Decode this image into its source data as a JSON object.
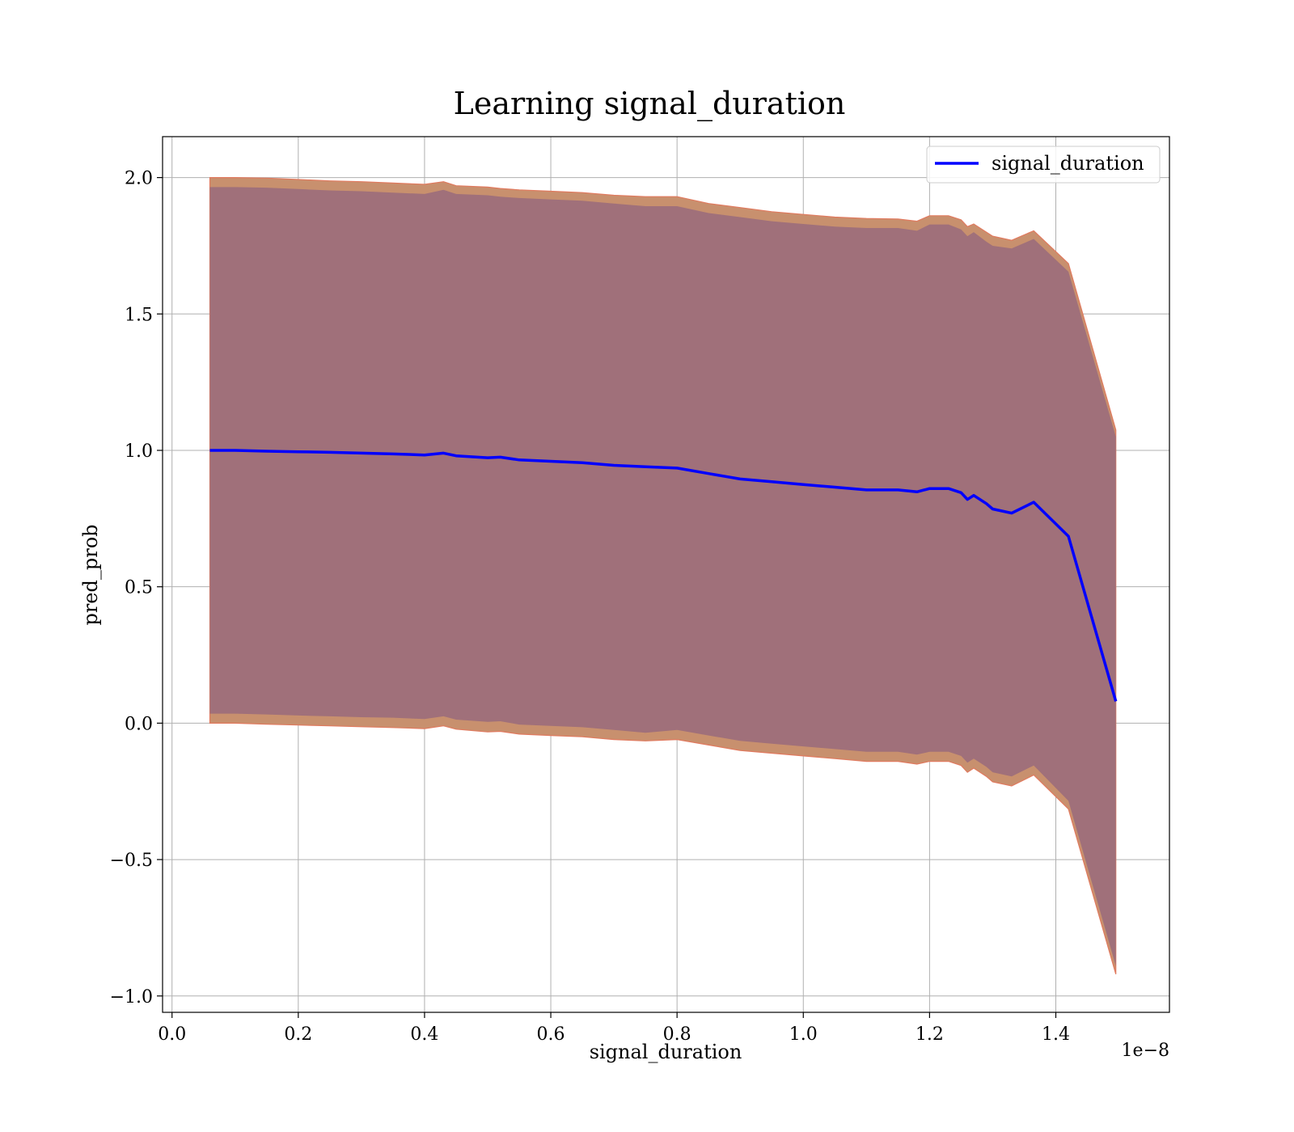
{
  "chart_data": {
    "type": "line",
    "title": "Learning signal_duration",
    "xlabel": "signal_duration",
    "ylabel": "pred_prob",
    "x_offset_text": "1e−8",
    "xlim": [
      -0.015,
      1.58
    ],
    "ylim": [
      -1.06,
      2.15
    ],
    "grid": true,
    "legend_position": "top-right",
    "x_ticks": [
      0.0,
      0.2,
      0.4,
      0.6,
      0.8,
      1.0,
      1.2,
      1.4
    ],
    "x_tick_labels": [
      "0.0",
      "0.2",
      "0.4",
      "0.6",
      "0.8",
      "1.0",
      "1.2",
      "1.4"
    ],
    "y_ticks": [
      -1.0,
      -0.5,
      0.0,
      0.5,
      1.0,
      1.5,
      2.0
    ],
    "y_tick_labels": [
      "−1.0",
      "−0.5",
      "0.0",
      "0.5",
      "1.0",
      "1.5",
      "2.0"
    ],
    "colors": {
      "line": "#0000ff",
      "band_outer": "#c8906e",
      "band_inner": "#a0707a",
      "band_edge": "#e07a5f",
      "grid": "#b0b0b0"
    },
    "series": [
      {
        "name": "signal_duration",
        "x": [
          0.06,
          0.1,
          0.15,
          0.2,
          0.25,
          0.3,
          0.35,
          0.4,
          0.43,
          0.45,
          0.5,
          0.52,
          0.55,
          0.6,
          0.65,
          0.7,
          0.75,
          0.8,
          0.85,
          0.9,
          0.95,
          1.0,
          1.05,
          1.1,
          1.15,
          1.18,
          1.2,
          1.23,
          1.25,
          1.26,
          1.27,
          1.29,
          1.3,
          1.33,
          1.365,
          1.42,
          1.495
        ],
        "y": [
          1.0,
          1.0,
          0.997,
          0.995,
          0.993,
          0.99,
          0.987,
          0.983,
          0.99,
          0.98,
          0.973,
          0.975,
          0.965,
          0.96,
          0.955,
          0.945,
          0.94,
          0.935,
          0.915,
          0.895,
          0.885,
          0.875,
          0.865,
          0.855,
          0.855,
          0.848,
          0.86,
          0.86,
          0.845,
          0.82,
          0.835,
          0.805,
          0.785,
          0.77,
          0.81,
          0.685,
          0.08
        ]
      }
    ],
    "band_outer": {
      "upper": [
        2.0,
        2.0,
        1.998,
        1.993,
        1.988,
        1.985,
        1.98,
        1.975,
        1.985,
        1.97,
        1.965,
        1.96,
        1.955,
        1.95,
        1.945,
        1.935,
        1.93,
        1.93,
        1.905,
        1.89,
        1.875,
        1.865,
        1.855,
        1.85,
        1.848,
        1.84,
        1.86,
        1.86,
        1.845,
        1.82,
        1.83,
        1.8,
        1.785,
        1.77,
        1.805,
        1.685,
        1.075
      ],
      "lower": [
        0.0,
        0.0,
        -0.004,
        -0.007,
        -0.01,
        -0.013,
        -0.016,
        -0.02,
        -0.01,
        -0.022,
        -0.032,
        -0.03,
        -0.04,
        -0.045,
        -0.05,
        -0.06,
        -0.065,
        -0.06,
        -0.08,
        -0.1,
        -0.11,
        -0.12,
        -0.13,
        -0.14,
        -0.14,
        -0.15,
        -0.14,
        -0.14,
        -0.155,
        -0.18,
        -0.165,
        -0.195,
        -0.215,
        -0.23,
        -0.19,
        -0.315,
        -0.92
      ]
    },
    "band_inner": {
      "upper": [
        1.965,
        1.965,
        1.963,
        1.958,
        1.953,
        1.95,
        1.945,
        1.94,
        1.955,
        1.94,
        1.935,
        1.93,
        1.925,
        1.92,
        1.915,
        1.905,
        1.895,
        1.895,
        1.87,
        1.855,
        1.84,
        1.83,
        1.82,
        1.815,
        1.815,
        1.805,
        1.828,
        1.828,
        1.81,
        1.785,
        1.8,
        1.765,
        1.75,
        1.74,
        1.775,
        1.655,
        1.05
      ],
      "lower": [
        0.035,
        0.035,
        0.032,
        0.028,
        0.025,
        0.022,
        0.02,
        0.015,
        0.025,
        0.013,
        0.005,
        0.007,
        -0.005,
        -0.01,
        -0.015,
        -0.025,
        -0.035,
        -0.025,
        -0.045,
        -0.065,
        -0.075,
        -0.085,
        -0.095,
        -0.105,
        -0.105,
        -0.115,
        -0.105,
        -0.105,
        -0.12,
        -0.145,
        -0.13,
        -0.16,
        -0.18,
        -0.195,
        -0.155,
        -0.285,
        -0.89
      ]
    }
  }
}
